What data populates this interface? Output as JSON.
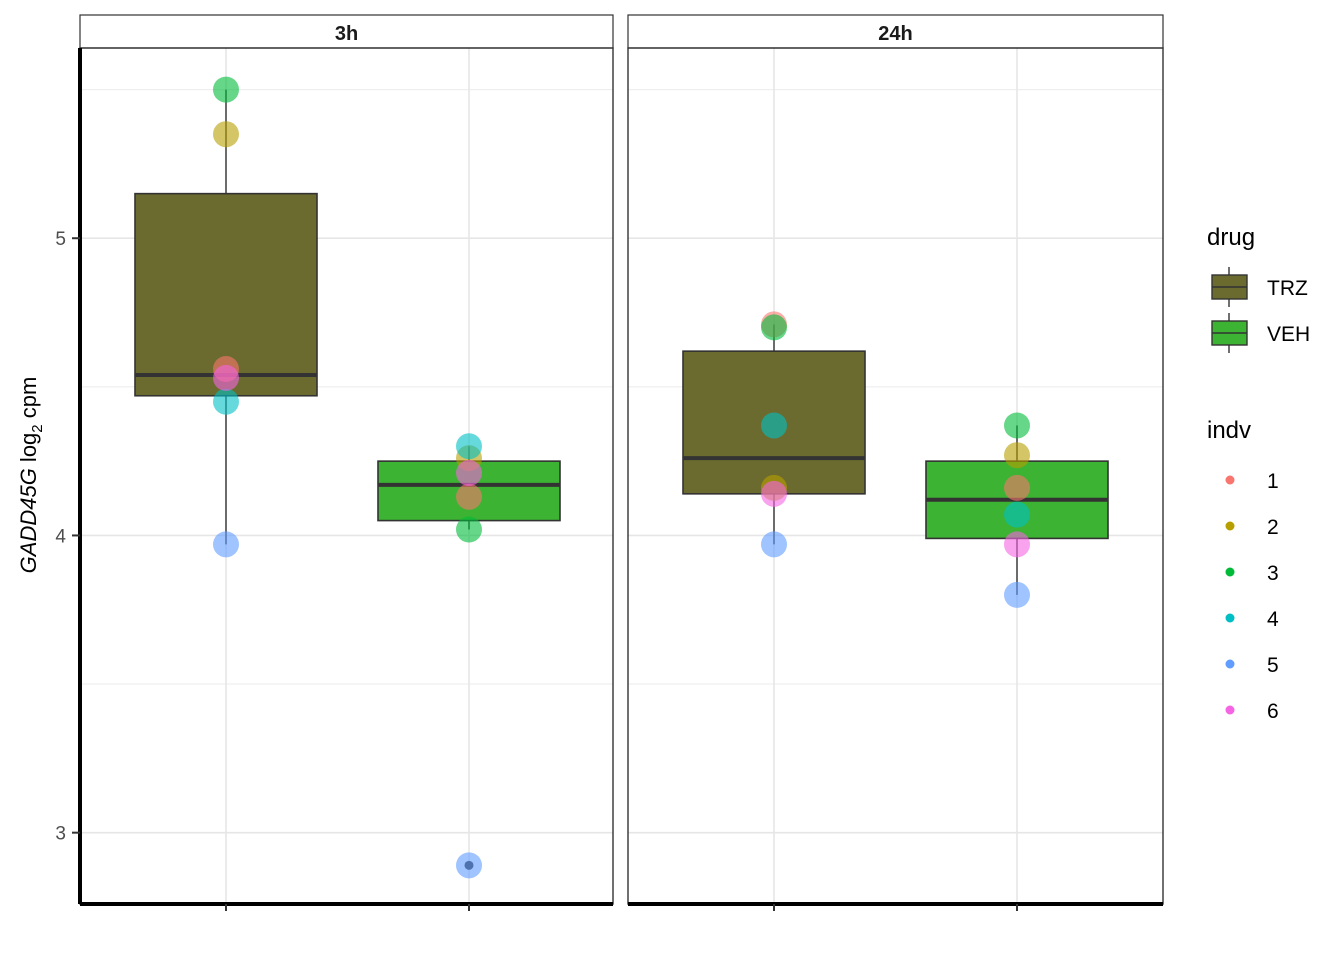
{
  "chart_data": {
    "type": "box",
    "ylabel": {
      "gene": "GADD45G",
      "log": "log",
      "sub": "2",
      "unit": "cpm"
    },
    "yticks": [
      3,
      4,
      5
    ],
    "ylim": [
      2.76,
      5.64
    ],
    "categories": [
      "TRZ",
      "VEH"
    ],
    "grid": true,
    "legend_position": "right",
    "panels": [
      {
        "label": "3h",
        "boxes": [
          {
            "drug": "TRZ",
            "q1": 4.47,
            "median": 4.54,
            "q3": 5.15,
            "whisker_low": 3.97,
            "whisker_high": 5.5
          },
          {
            "drug": "VEH",
            "q1": 4.05,
            "median": 4.17,
            "q3": 4.25,
            "whisker_low": 4.02,
            "whisker_high": 4.3,
            "outliers": [
              2.89
            ]
          }
        ],
        "points": [
          {
            "drug": "TRZ",
            "indv": "1",
            "y": 4.56
          },
          {
            "drug": "TRZ",
            "indv": "2",
            "y": 5.35
          },
          {
            "drug": "TRZ",
            "indv": "3",
            "y": 5.5
          },
          {
            "drug": "TRZ",
            "indv": "4",
            "y": 4.45
          },
          {
            "drug": "TRZ",
            "indv": "5",
            "y": 3.97
          },
          {
            "drug": "TRZ",
            "indv": "6",
            "y": 4.53
          },
          {
            "drug": "VEH",
            "indv": "1",
            "y": 4.13
          },
          {
            "drug": "VEH",
            "indv": "2",
            "y": 4.26
          },
          {
            "drug": "VEH",
            "indv": "3",
            "y": 4.02
          },
          {
            "drug": "VEH",
            "indv": "4",
            "y": 4.3
          },
          {
            "drug": "VEH",
            "indv": "5",
            "y": 2.89
          },
          {
            "drug": "VEH",
            "indv": "6",
            "y": 4.21
          }
        ]
      },
      {
        "label": "24h",
        "boxes": [
          {
            "drug": "TRZ",
            "q1": 4.14,
            "median": 4.26,
            "q3": 4.62,
            "whisker_low": 3.97,
            "whisker_high": 4.71
          },
          {
            "drug": "VEH",
            "q1": 3.99,
            "median": 4.12,
            "q3": 4.25,
            "whisker_low": 3.8,
            "whisker_high": 4.37
          }
        ],
        "points": [
          {
            "drug": "TRZ",
            "indv": "1",
            "y": 4.71
          },
          {
            "drug": "TRZ",
            "indv": "2",
            "y": 4.16
          },
          {
            "drug": "TRZ",
            "indv": "3",
            "y": 4.7
          },
          {
            "drug": "TRZ",
            "indv": "4",
            "y": 4.37
          },
          {
            "drug": "TRZ",
            "indv": "5",
            "y": 3.97
          },
          {
            "drug": "TRZ",
            "indv": "6",
            "y": 4.14
          },
          {
            "drug": "VEH",
            "indv": "1",
            "y": 4.16
          },
          {
            "drug": "VEH",
            "indv": "2",
            "y": 4.27
          },
          {
            "drug": "VEH",
            "indv": "3",
            "y": 4.37
          },
          {
            "drug": "VEH",
            "indv": "4",
            "y": 4.07
          },
          {
            "drug": "VEH",
            "indv": "5",
            "y": 3.8
          },
          {
            "drug": "VEH",
            "indv": "6",
            "y": 3.97
          }
        ]
      }
    ],
    "legend": {
      "drug": {
        "title": "drug",
        "items": [
          {
            "label": "TRZ",
            "color": "#6B6B2F"
          },
          {
            "label": "VEH",
            "color": "#3CB333"
          }
        ]
      },
      "indv": {
        "title": "indv",
        "items": [
          {
            "label": "1",
            "color": "#F8766D"
          },
          {
            "label": "2",
            "color": "#B79F00"
          },
          {
            "label": "3",
            "color": "#00BA38"
          },
          {
            "label": "4",
            "color": "#00BFC4"
          },
          {
            "label": "5",
            "color": "#619CFF"
          },
          {
            "label": "6",
            "color": "#F564E3"
          }
        ]
      }
    }
  }
}
